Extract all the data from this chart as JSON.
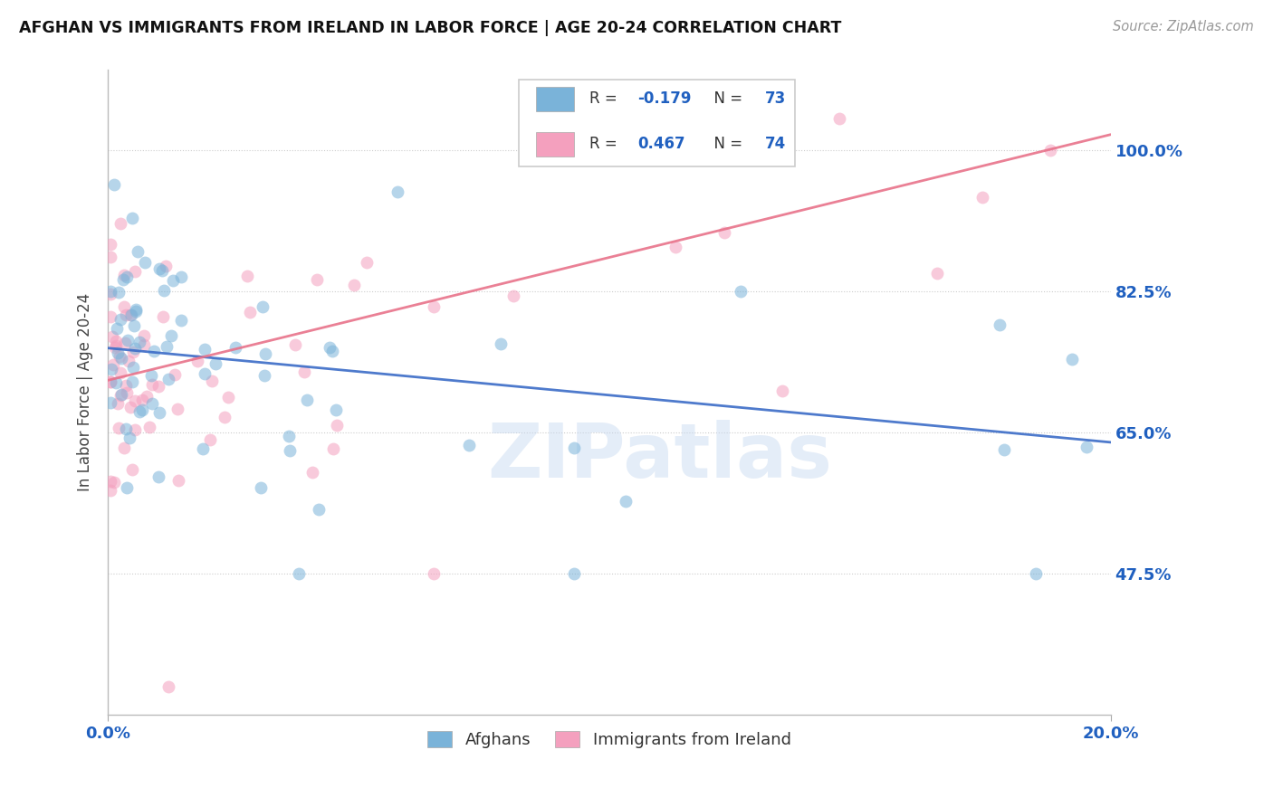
{
  "title": "AFGHAN VS IMMIGRANTS FROM IRELAND IN LABOR FORCE | AGE 20-24 CORRELATION CHART",
  "source": "Source: ZipAtlas.com",
  "ylabel_label": "In Labor Force | Age 20-24",
  "yticks": [
    "47.5%",
    "65.0%",
    "82.5%",
    "100.0%"
  ],
  "ytick_vals": [
    0.475,
    0.65,
    0.825,
    1.0
  ],
  "xlim": [
    0.0,
    0.2
  ],
  "ylim": [
    0.3,
    1.1
  ],
  "blue_line_x": [
    0.0,
    0.2
  ],
  "blue_line_y": [
    0.755,
    0.638
  ],
  "pink_line_x": [
    0.0,
    0.2
  ],
  "pink_line_y": [
    0.715,
    1.02
  ],
  "watermark": "ZIPatlas",
  "dot_size": 100,
  "dot_alpha": 0.55,
  "line_width": 2.0,
  "blue_color": "#7ab3d9",
  "pink_color": "#f4a0be",
  "blue_line_color": "#3b6cc7",
  "pink_line_color": "#e8728a",
  "axis_color": "#2060c0",
  "grid_color": "#cccccc",
  "background_color": "#ffffff",
  "legend_blue_r": "-0.179",
  "legend_blue_n": "73",
  "legend_pink_r": "0.467",
  "legend_pink_n": "74"
}
